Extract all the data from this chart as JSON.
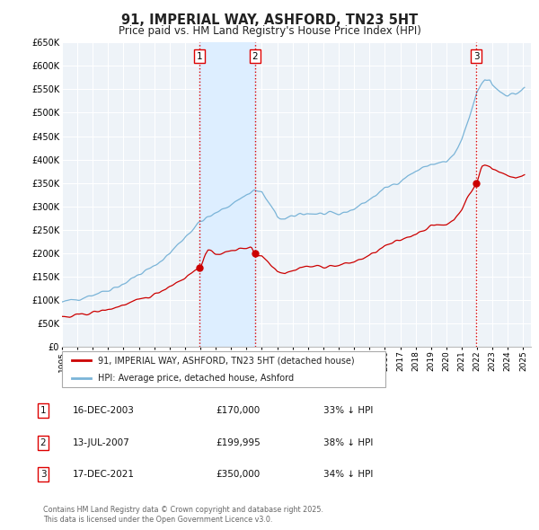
{
  "title": "91, IMPERIAL WAY, ASHFORD, TN23 5HT",
  "subtitle": "Price paid vs. HM Land Registry's House Price Index (HPI)",
  "ylim": [
    0,
    650000
  ],
  "yticks": [
    0,
    50000,
    100000,
    150000,
    200000,
    250000,
    300000,
    350000,
    400000,
    450000,
    500000,
    550000,
    600000,
    650000
  ],
  "ytick_labels": [
    "£0",
    "£50K",
    "£100K",
    "£150K",
    "£200K",
    "£250K",
    "£300K",
    "£350K",
    "£400K",
    "£450K",
    "£500K",
    "£550K",
    "£600K",
    "£650K"
  ],
  "xlim_start": 1995.0,
  "xlim_end": 2025.5,
  "background_color": "#ffffff",
  "plot_bg_color": "#eef3f8",
  "grid_color": "#ffffff",
  "title_fontsize": 10.5,
  "subtitle_fontsize": 8.5,
  "legend_label_red": "91, IMPERIAL WAY, ASHFORD, TN23 5HT (detached house)",
  "legend_label_blue": "HPI: Average price, detached house, Ashford",
  "sale_dates": [
    2003.958,
    2007.542,
    2021.958
  ],
  "sale_prices": [
    170000,
    199995,
    350000
  ],
  "sale_labels": [
    "1",
    "2",
    "3"
  ],
  "vline_color": "#dd0000",
  "vline_style": ":",
  "shade_start": 2003.958,
  "shade_end": 2007.542,
  "shade_color": "#ddeeff",
  "table_rows": [
    [
      "1",
      "16-DEC-2003",
      "£170,000",
      "33% ↓ HPI"
    ],
    [
      "2",
      "13-JUL-2007",
      "£199,995",
      "38% ↓ HPI"
    ],
    [
      "3",
      "17-DEC-2021",
      "£350,000",
      "34% ↓ HPI"
    ]
  ],
  "footer_text": "Contains HM Land Registry data © Crown copyright and database right 2025.\nThis data is licensed under the Open Government Licence v3.0.",
  "red_line_color": "#cc0000",
  "blue_line_color": "#7ab4d8"
}
